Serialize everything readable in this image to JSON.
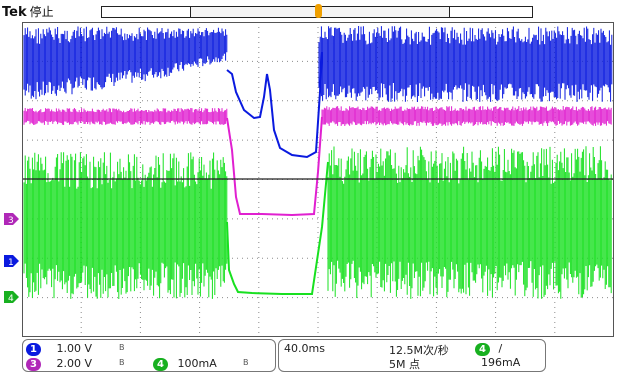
{
  "header": {
    "brand": "Tek",
    "state": "停止"
  },
  "colors": {
    "ch1": "#0a1adf",
    "ch3": "#e020d0",
    "ch4": "#18e020",
    "grid": "#8c8c8c",
    "trigger": "#f0a000"
  },
  "channels": [
    {
      "id": "1",
      "scale": "1.00 V",
      "bw": "B",
      "color": "#0a1adf"
    },
    {
      "id": "3",
      "scale": "2.00 V",
      "bw": "B",
      "color": "#b028b8"
    },
    {
      "id": "4",
      "scale": "100mA",
      "bw": "B",
      "color": "#18b020"
    }
  ],
  "horizontal": {
    "timebase": "40.0ms",
    "sample_rate": "12.5M次/秒",
    "record_length": "5M 点"
  },
  "trigger": {
    "source": "4",
    "slope": "/",
    "level": "196mA"
  }
}
